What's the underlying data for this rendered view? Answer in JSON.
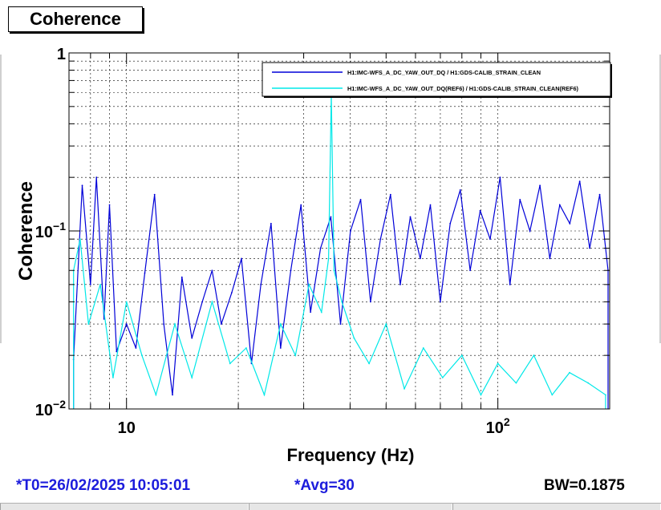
{
  "window": {
    "title_box": "Coherence"
  },
  "footer": {
    "t0": "*T0=26/02/2025 10:05:01",
    "avg": "*Avg=30",
    "bw": "BW=0.1875"
  },
  "colors": {
    "series_live": "#0000d8",
    "series_ref": "#00e8e8",
    "footer_blue": "#1c1cdc"
  },
  "chart_data": {
    "type": "line",
    "title": "Coherence",
    "xlabel": "Frequency (Hz)",
    "ylabel": "Coherence",
    "xscale": "log",
    "yscale": "log",
    "xlim": [
      7,
      200
    ],
    "ylim": [
      0.01,
      1
    ],
    "grid": true,
    "legend_position": "top-right",
    "x_tick_labels": [
      {
        "value": 10,
        "base": "10",
        "exp": ""
      },
      {
        "value": 100,
        "base": "10",
        "exp": "2"
      }
    ],
    "y_tick_labels": [
      {
        "value": 1,
        "base": "1",
        "exp": ""
      },
      {
        "value": 0.1,
        "base": "10",
        "exp": "−1"
      },
      {
        "value": 0.01,
        "base": "10",
        "exp": "−2"
      }
    ],
    "series": [
      {
        "name": "H1:IMC-WFS_A_DC_YAW_OUT_DQ / H1:GDS-CALIB_STRAIN_CLEAN",
        "color": "#0000d8",
        "x": [
          7.2,
          7.6,
          8.0,
          8.3,
          8.7,
          9.0,
          9.4,
          10.0,
          10.6,
          11.2,
          11.9,
          12.6,
          13.3,
          14.1,
          15.0,
          16.0,
          17.0,
          18.0,
          19.2,
          20.4,
          21.7,
          23.0,
          24.5,
          26.0,
          27.7,
          29.5,
          31.3,
          33.3,
          35.5,
          37.7,
          40.1,
          42.7,
          45.4,
          48.3,
          51.4,
          54.6,
          58.1,
          61.8,
          65.8,
          70.0,
          74.4,
          79.2,
          84.2,
          89.6,
          95.3,
          101.4,
          107.8,
          114.7,
          122.0,
          129.8,
          138.0,
          146.8,
          156.2,
          166.1,
          176.7,
          188.0,
          198.0
        ],
        "y": [
          0.019,
          0.18,
          0.05,
          0.2,
          0.032,
          0.14,
          0.021,
          0.03,
          0.022,
          0.058,
          0.16,
          0.03,
          0.012,
          0.055,
          0.025,
          0.04,
          0.06,
          0.03,
          0.045,
          0.07,
          0.018,
          0.05,
          0.11,
          0.022,
          0.06,
          0.14,
          0.035,
          0.08,
          0.12,
          0.03,
          0.1,
          0.15,
          0.04,
          0.09,
          0.16,
          0.05,
          0.12,
          0.07,
          0.14,
          0.04,
          0.11,
          0.17,
          0.06,
          0.13,
          0.09,
          0.2,
          0.05,
          0.15,
          0.1,
          0.18,
          0.07,
          0.14,
          0.11,
          0.19,
          0.08,
          0.16,
          0.06
        ]
      },
      {
        "name": "H1:IMC-WFS_A_DC_YAW_OUT_DQ(REF6) / H1:GDS-CALIB_STRAIN_CLEAN(REF6)",
        "color": "#00e8e8",
        "x": [
          7.2,
          7.5,
          7.9,
          8.5,
          9.2,
          10.0,
          11.0,
          12.0,
          13.5,
          15.0,
          17.0,
          19.0,
          21.0,
          23.5,
          26.0,
          28.5,
          31.0,
          33.5,
          35.0,
          35.6,
          36.2,
          38.0,
          41.0,
          45.0,
          50.0,
          56.0,
          63.0,
          71.0,
          80.0,
          90.0,
          100.0,
          112.0,
          125.0,
          140.0,
          156.0,
          175.0,
          195.0
        ],
        "y": [
          0.06,
          0.09,
          0.03,
          0.05,
          0.015,
          0.04,
          0.02,
          0.012,
          0.03,
          0.015,
          0.04,
          0.018,
          0.022,
          0.012,
          0.03,
          0.02,
          0.05,
          0.035,
          0.07,
          0.58,
          0.06,
          0.04,
          0.025,
          0.018,
          0.03,
          0.013,
          0.022,
          0.015,
          0.02,
          0.012,
          0.018,
          0.014,
          0.02,
          0.012,
          0.016,
          0.014,
          0.012
        ]
      }
    ]
  }
}
